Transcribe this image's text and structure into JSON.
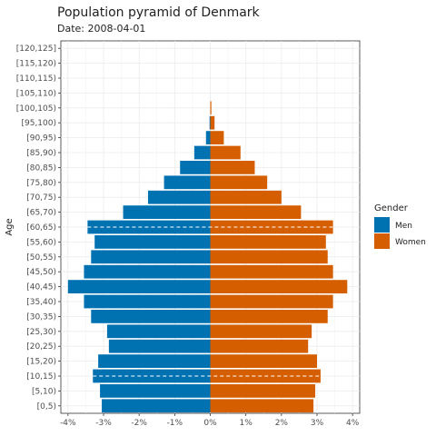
{
  "chart_data": {
    "type": "bar",
    "orientation": "horizontal",
    "title": "Population pyramid of Denmark",
    "subtitle": "Date: 2008-04-01",
    "ylabel": "Age",
    "xlabel": "",
    "x_ticks": [
      -4,
      -3,
      -2,
      -1,
      0,
      1,
      2,
      3,
      4
    ],
    "x_tick_labels": [
      "-4%",
      "-3%",
      "-2%",
      "-1%",
      "0%",
      "1%",
      "2%",
      "3%",
      "4%"
    ],
    "xlim": [
      -4.2,
      4.2
    ],
    "categories": [
      "[0,5)",
      "[5,10)",
      "[10,15)",
      "[15,20)",
      "[20,25)",
      "[25,30)",
      "[30,35)",
      "[35,40)",
      "[40,45)",
      "[45,50)",
      "[50,55)",
      "[55,60)",
      "[60,65)",
      "[65,70)",
      "[70,75)",
      "[75,80)",
      "[80,85)",
      "[85,90)",
      "[90,95)",
      "[95,100)",
      "[100,105)",
      "[105,110)",
      "[110,115)",
      "[115,120)",
      "[120,125]"
    ],
    "series": [
      {
        "name": "Men",
        "color": "#0072B2",
        "values": [
          -3.05,
          -3.1,
          -3.3,
          -3.15,
          -2.85,
          -2.9,
          -3.35,
          -3.55,
          -4.0,
          -3.55,
          -3.35,
          -3.25,
          -3.45,
          -2.45,
          -1.75,
          -1.3,
          -0.85,
          -0.45,
          -0.12,
          -0.02,
          0,
          0,
          0,
          0,
          0
        ]
      },
      {
        "name": "Women",
        "color": "#D55E00",
        "values": [
          2.9,
          2.95,
          3.1,
          3.0,
          2.75,
          2.85,
          3.3,
          3.45,
          3.85,
          3.45,
          3.3,
          3.25,
          3.45,
          2.55,
          2.0,
          1.6,
          1.25,
          0.85,
          0.38,
          0.12,
          0.03,
          0,
          0,
          0,
          0
        ]
      }
    ],
    "reference_lines": [
      {
        "category": "[60,65)",
        "left": -3.45,
        "right": 3.45
      },
      {
        "category": "[10,15)",
        "left": -3.3,
        "right": 3.1
      }
    ],
    "legend": {
      "title": "Gender",
      "position": "right"
    },
    "grid": true
  }
}
